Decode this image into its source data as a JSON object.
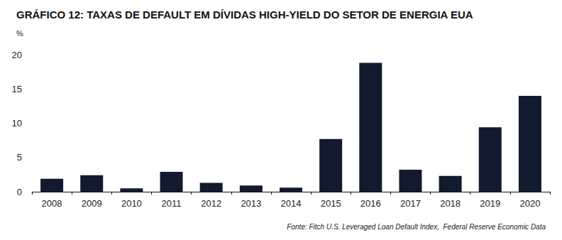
{
  "chart_data": {
    "type": "bar",
    "title": "GRÁFICO 12: TAXAS DE DEFAULT EM DÍVIDAS HIGH-YIELD DO SETOR DE ENERGIA EUA",
    "ylabel": "%",
    "source": "Fonte: Fitch U.S. Leveraged Loan Default Index,  Federal Reserve Economic Data",
    "categories": [
      "2008",
      "2009",
      "2010",
      "2011",
      "2012",
      "2013",
      "2014",
      "2015",
      "2016",
      "2017",
      "2018",
      "2019",
      "2020"
    ],
    "values": [
      1.9,
      2.4,
      0.5,
      2.9,
      1.3,
      0.9,
      0.6,
      7.7,
      18.8,
      3.2,
      2.3,
      9.4,
      14.0
    ],
    "color": "#111a2e",
    "ylim": [
      0,
      20
    ],
    "yticks": [
      0,
      5,
      10,
      15,
      20
    ],
    "grid": false
  }
}
